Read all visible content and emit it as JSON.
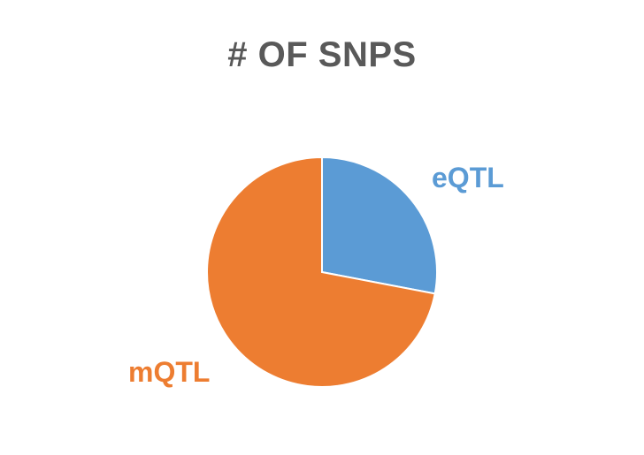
{
  "chart_data": {
    "type": "pie",
    "title": "# OF SNPS",
    "categories": [
      "eQTL",
      "mQTL"
    ],
    "values": [
      28,
      72
    ],
    "colors": [
      "#5B9BD5",
      "#ED7D31"
    ],
    "start_angle_deg": 0,
    "direction": "clockwise",
    "legend": "none",
    "data_labels": "category names beside slices"
  }
}
